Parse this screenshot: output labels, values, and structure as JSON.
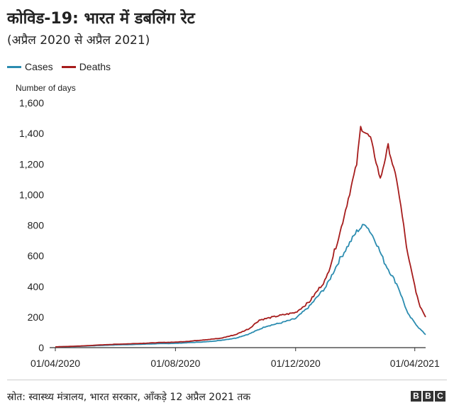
{
  "header": {
    "title": "कोविड-19: भारत में डबलिंग रेट",
    "subtitle": "(अप्रैल 2020 से अप्रैल 2021)"
  },
  "legend": {
    "items": [
      {
        "label": "Cases",
        "color": "#2b8cb0"
      },
      {
        "label": "Deaths",
        "color": "#a61c1c"
      }
    ]
  },
  "footer": {
    "source": "स्रोत: स्वास्थ्य मंत्रालय, भारत सरकार, आँकड़े 12 अप्रैल 2021 तक",
    "logo_letters": [
      "B",
      "B",
      "C"
    ]
  },
  "chart_data": {
    "type": "line",
    "title": "कोविड-19: भारत में डबलिंग रेट",
    "subtitle": "(अप्रैल 2020 से अप्रैल 2021)",
    "ylabel": "Number of days",
    "xlabel": "",
    "x_ticks": [
      "01/04/2020",
      "01/08/2020",
      "01/12/2020",
      "01/04/2021"
    ],
    "x_range": [
      "01/04/2020",
      "12/04/2021"
    ],
    "ylim": [
      0,
      1600
    ],
    "y_ticks": [
      0,
      200,
      400,
      600,
      800,
      1000,
      1200,
      1400,
      1600
    ],
    "y_tick_labels": [
      "0",
      "200",
      "400",
      "600",
      "800",
      "1,000",
      "1,200",
      "1,400",
      "1,600"
    ],
    "grid": false,
    "legend_position": "top-left",
    "series": [
      {
        "name": "Cases",
        "color": "#2b8cb0",
        "points": [
          [
            "01/04/2020",
            5
          ],
          [
            "15/04/2020",
            7
          ],
          [
            "01/05/2020",
            10
          ],
          [
            "15/05/2020",
            14
          ],
          [
            "01/06/2020",
            18
          ],
          [
            "15/06/2020",
            20
          ],
          [
            "01/07/2020",
            23
          ],
          [
            "15/07/2020",
            26
          ],
          [
            "01/08/2020",
            28
          ],
          [
            "15/08/2020",
            33
          ],
          [
            "01/09/2020",
            38
          ],
          [
            "15/09/2020",
            47
          ],
          [
            "01/10/2020",
            62
          ],
          [
            "15/10/2020",
            90
          ],
          [
            "01/11/2020",
            140
          ],
          [
            "15/11/2020",
            160
          ],
          [
            "01/12/2020",
            190
          ],
          [
            "15/12/2020",
            270
          ],
          [
            "01/01/2021",
            400
          ],
          [
            "15/01/2021",
            580
          ],
          [
            "01/02/2021",
            760
          ],
          [
            "10/02/2021",
            810
          ],
          [
            "20/02/2021",
            700
          ],
          [
            "01/03/2021",
            560
          ],
          [
            "15/03/2021",
            400
          ],
          [
            "25/03/2021",
            220
          ],
          [
            "05/04/2021",
            130
          ],
          [
            "12/04/2021",
            85
          ]
        ]
      },
      {
        "name": "Deaths",
        "color": "#a61c1c",
        "points": [
          [
            "01/04/2020",
            5
          ],
          [
            "15/04/2020",
            8
          ],
          [
            "01/05/2020",
            12
          ],
          [
            "15/05/2020",
            17
          ],
          [
            "01/06/2020",
            22
          ],
          [
            "15/06/2020",
            25
          ],
          [
            "01/07/2020",
            29
          ],
          [
            "15/07/2020",
            33
          ],
          [
            "01/08/2020",
            36
          ],
          [
            "15/08/2020",
            42
          ],
          [
            "01/09/2020",
            52
          ],
          [
            "15/09/2020",
            60
          ],
          [
            "01/10/2020",
            85
          ],
          [
            "15/10/2020",
            125
          ],
          [
            "25/10/2020",
            180
          ],
          [
            "01/11/2020",
            190
          ],
          [
            "15/11/2020",
            210
          ],
          [
            "01/12/2020",
            230
          ],
          [
            "15/12/2020",
            300
          ],
          [
            "01/01/2021",
            450
          ],
          [
            "15/01/2021",
            750
          ],
          [
            "01/02/2021",
            1200
          ],
          [
            "05/02/2021",
            1440
          ],
          [
            "15/02/2021",
            1370
          ],
          [
            "25/02/2021",
            1100
          ],
          [
            "05/03/2021",
            1320
          ],
          [
            "15/03/2021",
            1050
          ],
          [
            "25/03/2021",
            600
          ],
          [
            "05/04/2021",
            290
          ],
          [
            "12/04/2021",
            200
          ]
        ]
      }
    ]
  }
}
